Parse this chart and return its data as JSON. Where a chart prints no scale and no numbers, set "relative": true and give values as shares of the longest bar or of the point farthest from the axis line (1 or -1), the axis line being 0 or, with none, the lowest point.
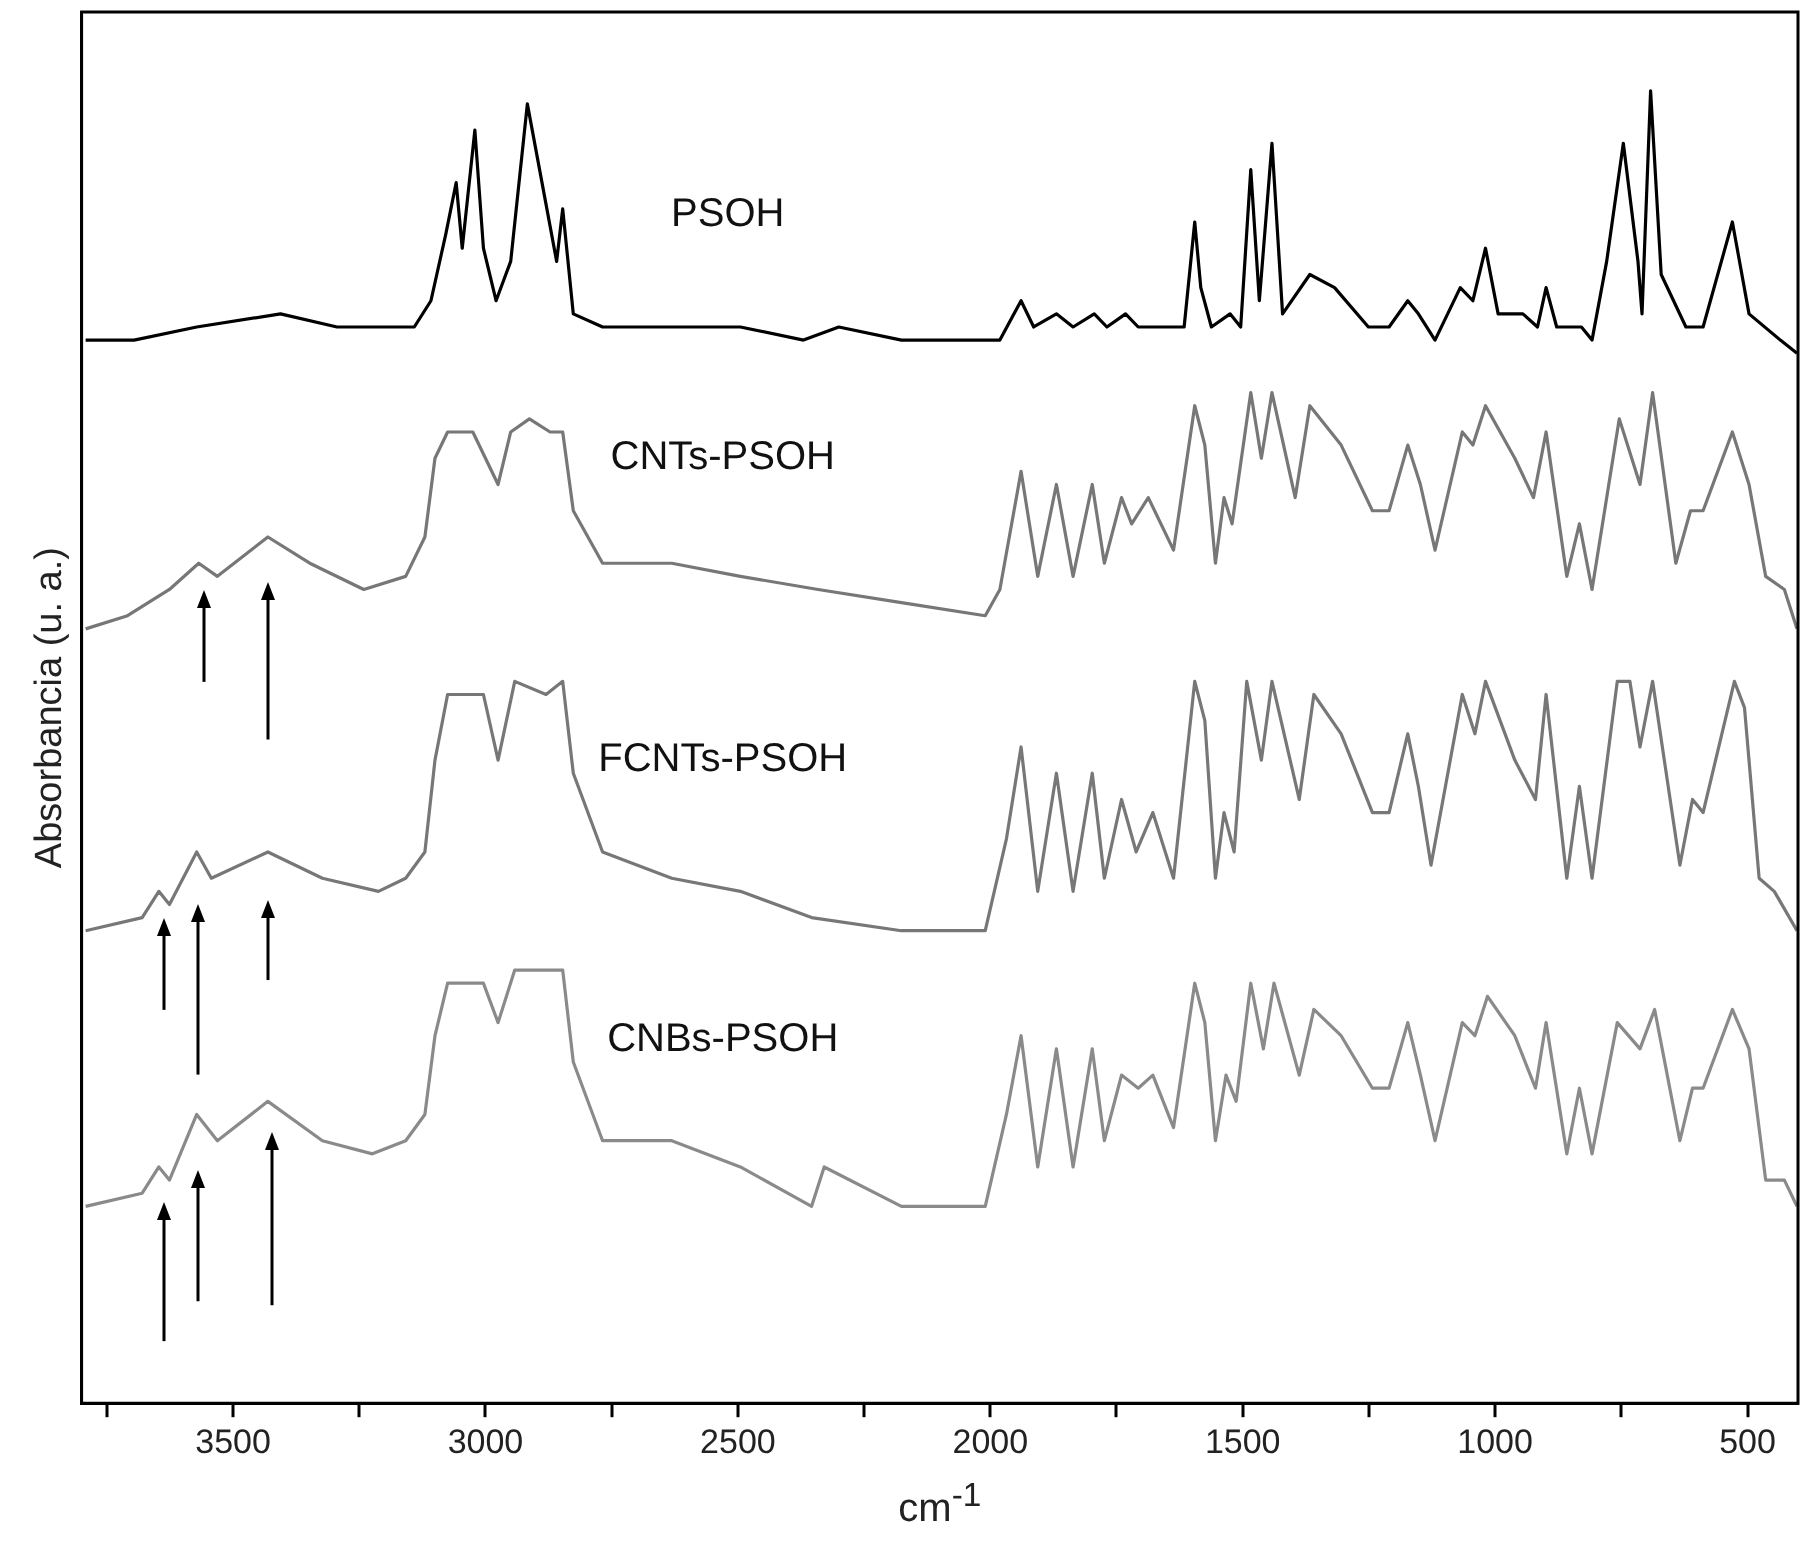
{
  "chart_data": {
    "type": "line",
    "xlabel": "cm$^{-1}$",
    "ylabel": "Absorbancia (u. a.)",
    "relative": true,
    "xlim": [
      3800,
      400
    ],
    "xticks": [
      {
        "value": 3750,
        "label": null
      },
      3500,
      {
        "value": 3250,
        "label": null
      },
      3000,
      {
        "value": 2750,
        "label": null
      },
      2500,
      {
        "value": 2250,
        "label": null
      },
      2000,
      {
        "value": 1750,
        "label": null
      },
      1500,
      {
        "value": 1250,
        "label": null
      },
      1000,
      {
        "value": 750,
        "label": null
      },
      500
    ],
    "grid": false,
    "legend": false,
    "marker": "none",
    "line_style": "solid",
    "tick_labels": "x",
    "series": [
      {
        "name": "PSOH",
        "color": "#000000",
        "x": [
          3792,
          3696,
          3572,
          3406,
          3294,
          3141,
          3108,
          3079,
          3058,
          3046,
          3021,
          3004,
          2979,
          2950,
          2917,
          2888,
          2859,
          2847,
          2826,
          2768,
          2495,
          2370,
          2300,
          2176,
          1981,
          1939,
          1914,
          1869,
          1836,
          1794,
          1769,
          1732,
          1707,
          1666,
          1616,
          1595,
          1583,
          1562,
          1525,
          1504,
          1484,
          1467,
          1442,
          1421,
          1367,
          1318,
          1251,
          1210,
          1173,
          1152,
          1119,
          1069,
          1044,
          1019,
          994,
          945,
          916,
          899,
          878,
          829,
          808,
          779,
          746,
          717,
          709,
          692,
          671,
          622,
          588,
          530,
          497,
          435,
          402
        ],
        "values": [
          0.81,
          0.81,
          0.82,
          0.83,
          0.82,
          0.82,
          0.84,
          0.89,
          0.93,
          0.88,
          0.97,
          0.88,
          0.84,
          0.87,
          0.99,
          0.93,
          0.87,
          0.91,
          0.83,
          0.82,
          0.82,
          0.81,
          0.82,
          0.81,
          0.81,
          0.84,
          0.82,
          0.83,
          0.82,
          0.83,
          0.82,
          0.83,
          0.82,
          0.82,
          0.82,
          0.9,
          0.85,
          0.82,
          0.83,
          0.82,
          0.94,
          0.84,
          0.96,
          0.83,
          0.86,
          0.85,
          0.82,
          0.82,
          0.84,
          0.83,
          0.81,
          0.85,
          0.84,
          0.88,
          0.83,
          0.83,
          0.82,
          0.85,
          0.82,
          0.82,
          0.81,
          0.87,
          0.96,
          0.87,
          0.83,
          1,
          0.86,
          0.82,
          0.82,
          0.9,
          0.83,
          0.81,
          0.8
        ]
      },
      {
        "name": "CNTs-PSOH",
        "color": "#777777",
        "x": [
          3792,
          3709,
          3626,
          3568,
          3531,
          3431,
          3348,
          3241,
          3158,
          3120,
          3100,
          3075,
          3025,
          2975,
          2950,
          2913,
          2872,
          2847,
          2826,
          2768,
          2631,
          2495,
          2341,
          2176,
          2010,
          1981,
          1939,
          1906,
          1869,
          1836,
          1798,
          1774,
          1740,
          1720,
          1687,
          1637,
          1595,
          1575,
          1554,
          1537,
          1521,
          1484,
          1463,
          1442,
          1396,
          1367,
          1305,
          1243,
          1210,
          1173,
          1148,
          1119,
          1065,
          1044,
          1019,
          961,
          924,
          899,
          858,
          833,
          808,
          754,
          713,
          688,
          642,
          613,
          588,
          530,
          497,
          464,
          427,
          402
        ],
        "values": [
          0.59,
          0.6,
          0.62,
          0.64,
          0.63,
          0.66,
          0.64,
          0.62,
          0.63,
          0.66,
          0.72,
          0.74,
          0.74,
          0.7,
          0.74,
          0.75,
          0.74,
          0.74,
          0.68,
          0.64,
          0.64,
          0.63,
          0.62,
          0.61,
          0.6,
          0.62,
          0.71,
          0.63,
          0.7,
          0.63,
          0.7,
          0.64,
          0.69,
          0.67,
          0.69,
          0.65,
          0.76,
          0.73,
          0.64,
          0.69,
          0.67,
          0.77,
          0.72,
          0.77,
          0.69,
          0.76,
          0.73,
          0.68,
          0.68,
          0.73,
          0.7,
          0.65,
          0.74,
          0.73,
          0.76,
          0.72,
          0.69,
          0.74,
          0.63,
          0.67,
          0.62,
          0.75,
          0.7,
          0.77,
          0.64,
          0.68,
          0.68,
          0.74,
          0.7,
          0.63,
          0.62,
          0.59
        ]
      },
      {
        "name": "FCNTs-PSOH",
        "color": "#777777",
        "x": [
          3792,
          3680,
          3647,
          3626,
          3572,
          3543,
          3431,
          3323,
          3212,
          3158,
          3120,
          3100,
          3075,
          3004,
          2975,
          2942,
          2880,
          2847,
          2826,
          2768,
          2631,
          2495,
          2354,
          2176,
          2010,
          1968,
          1939,
          1906,
          1869,
          1836,
          1798,
          1774,
          1740,
          1711,
          1678,
          1637,
          1595,
          1575,
          1554,
          1537,
          1517,
          1492,
          1463,
          1442,
          1388,
          1359,
          1305,
          1243,
          1210,
          1173,
          1152,
          1127,
          1065,
          1040,
          1019,
          961,
          920,
          899,
          858,
          833,
          808,
          758,
          733,
          713,
          688,
          634,
          609,
          588,
          526,
          506,
          477,
          447,
          402
        ],
        "values": [
          0.36,
          0.37,
          0.39,
          0.38,
          0.42,
          0.4,
          0.42,
          0.4,
          0.39,
          0.4,
          0.42,
          0.49,
          0.54,
          0.54,
          0.49,
          0.55,
          0.54,
          0.55,
          0.48,
          0.42,
          0.4,
          0.39,
          0.37,
          0.36,
          0.36,
          0.43,
          0.5,
          0.39,
          0.48,
          0.39,
          0.48,
          0.4,
          0.46,
          0.42,
          0.45,
          0.4,
          0.55,
          0.52,
          0.4,
          0.45,
          0.42,
          0.55,
          0.49,
          0.55,
          0.46,
          0.54,
          0.51,
          0.45,
          0.45,
          0.51,
          0.47,
          0.41,
          0.54,
          0.51,
          0.55,
          0.49,
          0.46,
          0.54,
          0.4,
          0.47,
          0.4,
          0.55,
          0.55,
          0.5,
          0.55,
          0.41,
          0.46,
          0.45,
          0.55,
          0.53,
          0.4,
          0.39,
          0.36
        ]
      },
      {
        "name": "CNBs-PSOH",
        "color": "#8a8a8a",
        "x": [
          3792,
          3680,
          3647,
          3626,
          3572,
          3531,
          3431,
          3323,
          3224,
          3158,
          3120,
          3100,
          3075,
          3004,
          2975,
          2942,
          2880,
          2847,
          2826,
          2768,
          2631,
          2495,
          2354,
          2329,
          2176,
          2010,
          1968,
          1939,
          1906,
          1869,
          1836,
          1798,
          1774,
          1740,
          1707,
          1678,
          1637,
          1595,
          1575,
          1554,
          1533,
          1513,
          1484,
          1459,
          1438,
          1388,
          1359,
          1305,
          1243,
          1210,
          1173,
          1148,
          1119,
          1065,
          1040,
          1015,
          961,
          920,
          899,
          858,
          833,
          808,
          758,
          713,
          684,
          634,
          609,
          588,
          530,
          497,
          464,
          427,
          402
        ],
        "values": [
          0.15,
          0.16,
          0.18,
          0.17,
          0.22,
          0.2,
          0.23,
          0.2,
          0.19,
          0.2,
          0.22,
          0.28,
          0.32,
          0.32,
          0.29,
          0.33,
          0.33,
          0.33,
          0.26,
          0.2,
          0.2,
          0.18,
          0.15,
          0.18,
          0.15,
          0.15,
          0.22,
          0.28,
          0.18,
          0.27,
          0.18,
          0.27,
          0.2,
          0.25,
          0.24,
          0.25,
          0.21,
          0.32,
          0.29,
          0.2,
          0.25,
          0.23,
          0.32,
          0.27,
          0.32,
          0.25,
          0.3,
          0.28,
          0.24,
          0.24,
          0.29,
          0.25,
          0.2,
          0.29,
          0.28,
          0.31,
          0.28,
          0.24,
          0.29,
          0.19,
          0.24,
          0.19,
          0.29,
          0.27,
          0.3,
          0.2,
          0.24,
          0.24,
          0.3,
          0.27,
          0.17,
          0.17,
          0.15
        ]
      }
    ]
  }
}
